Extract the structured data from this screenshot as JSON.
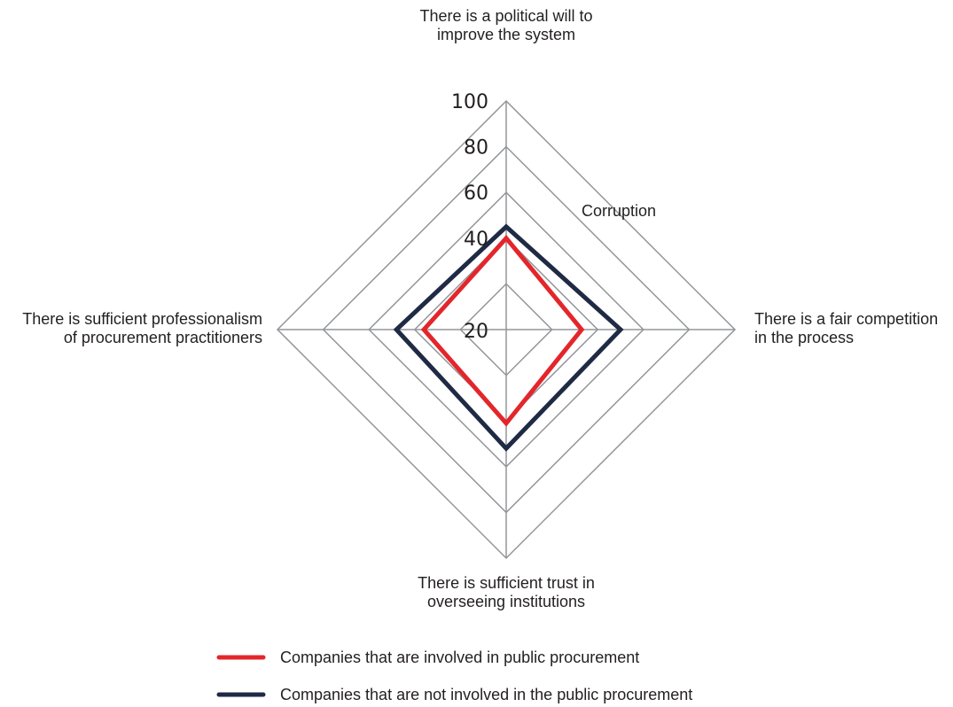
{
  "chart_data": {
    "type": "radar",
    "axes": [
      [
        "There is a political will to",
        "improve the system"
      ],
      [
        "There is a fair competition",
        "in the process"
      ],
      [
        "There is sufficient trust in",
        "overseeing institutions"
      ],
      [
        "There is sufficient professionalism",
        "of procurement practitioners"
      ]
    ],
    "ticks": [
      20,
      40,
      60,
      80,
      100
    ],
    "tick_labels": [
      "20",
      "40",
      "60",
      "80",
      "100"
    ],
    "range": [
      0,
      100
    ],
    "annotation": "Corruption",
    "series": [
      {
        "name": "Companies that are involved in public procurement",
        "color": "#e3262b",
        "values": [
          40,
          33,
          41,
          36
        ]
      },
      {
        "name": "Companies that are not involved in the public procurement",
        "color": "#1f2a44",
        "values": [
          45,
          50,
          52,
          48
        ]
      }
    ],
    "legend_position": "bottom"
  }
}
